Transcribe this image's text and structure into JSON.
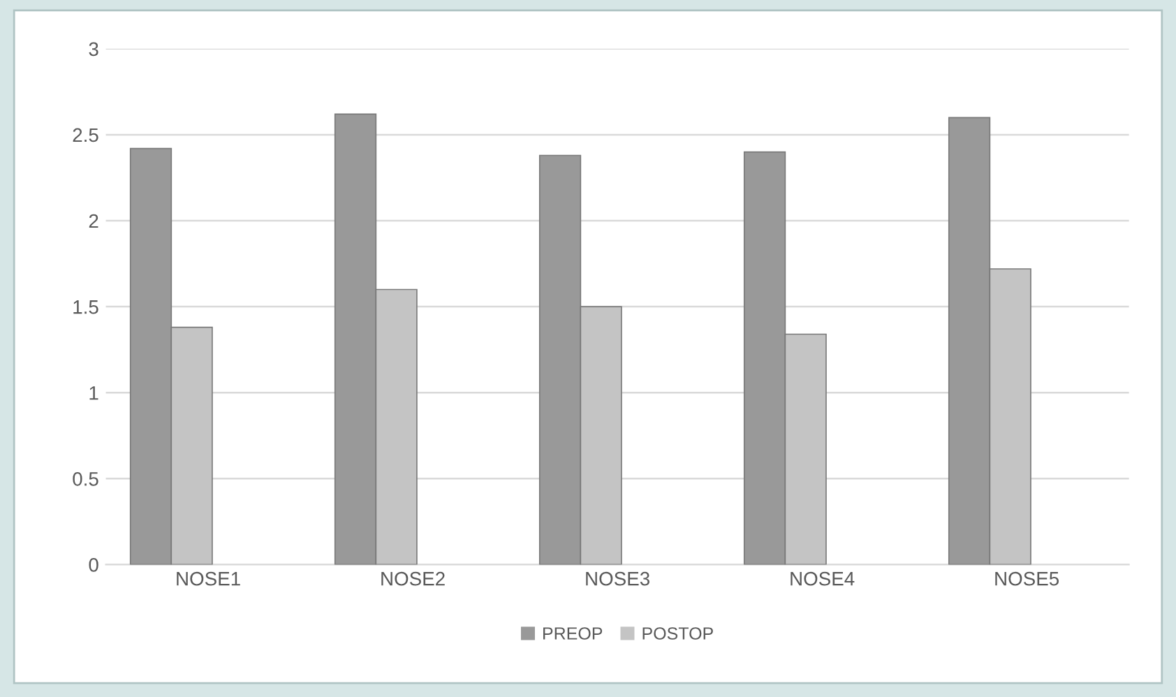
{
  "chart_data": {
    "type": "bar",
    "categories": [
      "NOSE1",
      "NOSE2",
      "NOSE3",
      "NOSE4",
      "NOSE5"
    ],
    "series": [
      {
        "name": "PREOP",
        "color": "#999999",
        "values": [
          2.42,
          2.62,
          2.38,
          2.4,
          2.6
        ]
      },
      {
        "name": "POSTOP",
        "color": "#c4c4c4",
        "values": [
          1.38,
          1.6,
          1.5,
          1.34,
          1.72
        ]
      }
    ],
    "ylim": [
      0,
      3
    ],
    "yticks": [
      0,
      0.5,
      1,
      1.5,
      2,
      2.5,
      3
    ],
    "grid": "y",
    "legend": "bottom"
  }
}
